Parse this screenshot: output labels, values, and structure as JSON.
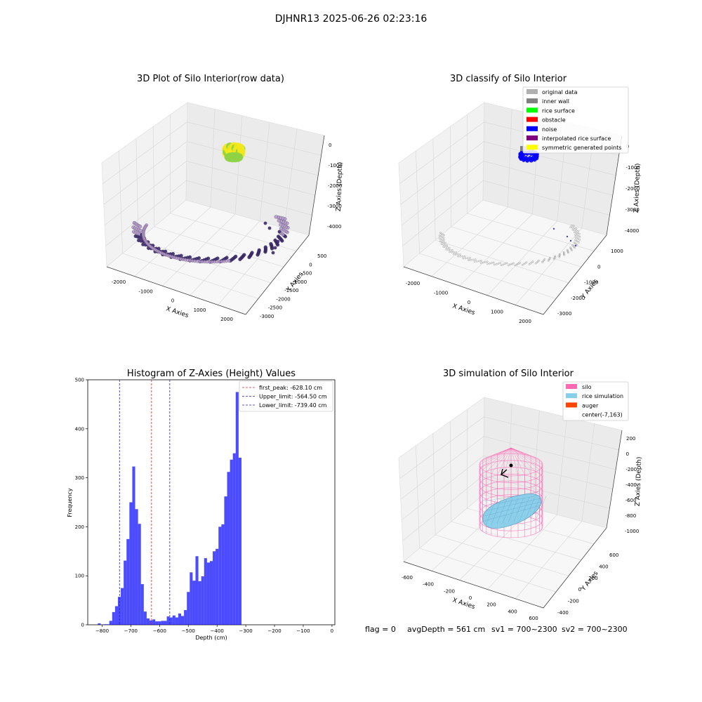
{
  "suptitle": "DJHNR13 2025-06-26 02:23:16",
  "chart_data": [
    {
      "type": "scatter3d",
      "title": "3D Plot of Silo Interior(row data)",
      "xlabel": "X Axies",
      "ylabel": "Y Axies",
      "zlabel": "Z Axies (Depth)",
      "x_ticks": [
        "-2000",
        "-1000",
        "0",
        "1000",
        "2000"
      ],
      "y_ticks": [
        "500",
        "0",
        "-500",
        "-1000",
        "-1500",
        "-2000",
        "-2500",
        "-3000"
      ],
      "z_ticks": [
        "0",
        "-1000",
        "-2000",
        "-3000",
        "-4000"
      ],
      "grid": true,
      "colors": {
        "high": "#f3e81a",
        "mid": "#8ed345",
        "low": "#2c3f7a",
        "ring_light": "#b79bc9",
        "ring_dark": "#3e2a6b"
      }
    },
    {
      "type": "scatter3d",
      "title": "3D classify of Silo Interior",
      "xlabel": "X Axies",
      "ylabel": "Y Axies",
      "zlabel": "Z Axies (Depth)",
      "x_ticks": [
        "-2000",
        "-1000",
        "0",
        "1000",
        "2000"
      ],
      "y_ticks": [
        "1000",
        "0",
        "-1000",
        "-2000",
        "-3000"
      ],
      "z_ticks": [
        "0",
        "-1000",
        "-2000",
        "-3000",
        "-4000"
      ],
      "grid": true,
      "legend": [
        {
          "label": "original data",
          "color": "#b0b0b0"
        },
        {
          "label": "inner wall",
          "color": "#808080"
        },
        {
          "label": "rice surface",
          "color": "#00ff00"
        },
        {
          "label": "obstacle",
          "color": "#ff0000"
        },
        {
          "label": "noise",
          "color": "#0000ff"
        },
        {
          "label": "interpolated rice surface",
          "color": "#800080"
        },
        {
          "label": "symmetric generated points",
          "color": "#ffff00"
        }
      ]
    },
    {
      "type": "bar",
      "title": "Histogram of Z-Axies (Height) Values",
      "xlabel": "Depth (cm)",
      "ylabel": "Frequency",
      "xlim": [
        -850,
        10
      ],
      "ylim": [
        0,
        500
      ],
      "x_ticks": [
        -800,
        -700,
        -600,
        -500,
        -400,
        -300,
        -200,
        -100,
        0
      ],
      "y_ticks": [
        0,
        100,
        200,
        300,
        400,
        500
      ],
      "bin_start": -815,
      "bin_width": 10,
      "values": [
        3,
        0,
        1,
        1,
        8,
        26,
        38,
        57,
        75,
        131,
        175,
        250,
        323,
        236,
        206,
        83,
        27,
        13,
        9,
        11,
        7,
        7,
        8,
        8,
        17,
        15,
        19,
        15,
        23,
        18,
        30,
        67,
        107,
        90,
        140,
        89,
        99,
        136,
        127,
        130,
        150,
        155,
        200,
        205,
        262,
        312,
        337,
        350,
        475,
        341
      ],
      "bar_color": "#0000ff",
      "lines": [
        {
          "label": "first_peak: -628.10 cm",
          "x": -628.1,
          "color": "#dd2222"
        },
        {
          "label": "Upper_limit: -564.50 cm",
          "x": -564.5,
          "color": "#2222bb"
        },
        {
          "label": "Lower_limit: -739.40 cm",
          "x": -739.4,
          "color": "#2222bb"
        }
      ],
      "legend_position": "top-right"
    },
    {
      "type": "wireframe3d",
      "title": "3D simulation of Silo Interior",
      "xlabel": "X Axies",
      "ylabel": "Y Axies",
      "zlabel": "Z Axies (Depth)",
      "x_ticks": [
        "-600",
        "-400",
        "-200",
        "0",
        "200",
        "400",
        "600"
      ],
      "y_ticks": [
        "600",
        "400",
        "200",
        "0",
        "-200",
        "-400"
      ],
      "z_ticks": [
        "200",
        "0",
        "-200",
        "-400",
        "-600",
        "-800",
        "-1000"
      ],
      "grid": true,
      "legend": [
        {
          "label": "silo",
          "color": "#ff69b4"
        },
        {
          "label": "rice simulation",
          "color": "#87ceeb"
        },
        {
          "label": "auger",
          "color": "#ff4500"
        },
        {
          "label": "center(-7,163)",
          "color": ""
        }
      ]
    }
  ],
  "status": {
    "flag": "flag = 0",
    "avg_depth": "avgDepth = 561 cm",
    "sv1": "sv1 = 700~2300",
    "sv2": "sv2 = 700~2300"
  }
}
